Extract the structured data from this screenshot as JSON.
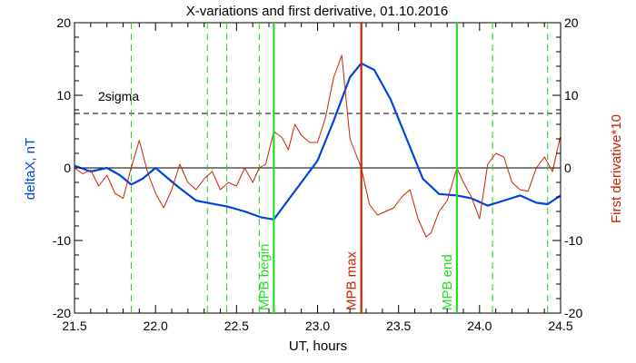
{
  "chart_data": {
    "type": "line",
    "title": "X-variations and first derivative, 01.10.2016",
    "xlabel": "UT, hours",
    "ylabel_left": "deltaX, nT",
    "ylabel_right": "First derivative*10",
    "xlim": [
      21.5,
      24.5
    ],
    "ylim_left": [
      -20,
      20
    ],
    "ylim_right": [
      -20,
      20
    ],
    "x_ticks": [
      "21.5",
      "22.0",
      "22.5",
      "23.0",
      "23.5",
      "24.0",
      "24.5"
    ],
    "y_ticks_left": [
      "-20",
      "-10",
      "0",
      "10",
      "20"
    ],
    "y_ticks_right": [
      "-20",
      "-10",
      "0",
      "10",
      "20"
    ],
    "threshold": {
      "label": "2sigma",
      "value": 7.5
    },
    "colors": {
      "deltaX": "#0044dd",
      "derivative": "#cc2200",
      "mpb_boundary": "#22dd22",
      "mpb_max": "#cc2200",
      "dashed_green": "#22cc22",
      "ylabel_left": "#0044dd",
      "ylabel_right": "#cc2200"
    },
    "vertical_markers": [
      {
        "label": "MPB begin",
        "x": 22.73,
        "kind": "boundary"
      },
      {
        "label": "MPB max",
        "x": 23.27,
        "kind": "max"
      },
      {
        "label": "MPB end",
        "x": 23.86,
        "kind": "boundary"
      }
    ],
    "dashed_verticals": [
      21.85,
      22.32,
      22.44,
      22.64,
      24.08,
      24.42
    ],
    "series": [
      {
        "key": "deltaX",
        "x": [
          21.5,
          21.6,
          21.7,
          21.78,
          21.85,
          21.92,
          22.0,
          22.08,
          22.15,
          22.25,
          22.32,
          22.44,
          22.55,
          22.65,
          22.73,
          22.8,
          22.9,
          23.0,
          23.1,
          23.2,
          23.27,
          23.35,
          23.45,
          23.55,
          23.65,
          23.75,
          23.86,
          23.95,
          24.05,
          24.15,
          24.25,
          24.35,
          24.42,
          24.5
        ],
        "y": [
          0.3,
          -0.5,
          0.0,
          -1.0,
          -2.3,
          -1.5,
          0.0,
          -1.5,
          -2.8,
          -4.5,
          -4.8,
          -5.3,
          -6.0,
          -6.8,
          -7.1,
          -5.0,
          -2.0,
          1.0,
          6.5,
          12.5,
          14.4,
          13.5,
          9.5,
          4.0,
          -1.5,
          -3.6,
          -3.8,
          -4.2,
          -5.2,
          -4.5,
          -3.8,
          -4.8,
          -5.0,
          -3.8
        ]
      },
      {
        "key": "derivative",
        "x": [
          21.5,
          21.55,
          21.6,
          21.65,
          21.7,
          21.75,
          21.8,
          21.85,
          21.9,
          21.95,
          22.0,
          22.05,
          22.1,
          22.15,
          22.2,
          22.25,
          22.3,
          22.35,
          22.4,
          22.45,
          22.5,
          22.55,
          22.6,
          22.64,
          22.68,
          22.73,
          22.78,
          22.82,
          22.86,
          22.9,
          22.95,
          23.0,
          23.05,
          23.1,
          23.15,
          23.2,
          23.27,
          23.32,
          23.37,
          23.42,
          23.47,
          23.52,
          23.57,
          23.62,
          23.67,
          23.7,
          23.75,
          23.8,
          23.86,
          23.9,
          23.95,
          24.0,
          24.05,
          24.1,
          24.15,
          24.2,
          24.25,
          24.3,
          24.35,
          24.4,
          24.45,
          24.5
        ],
        "y": [
          0.0,
          -0.8,
          -0.3,
          -2.5,
          -1.0,
          -3.5,
          -4.2,
          0.0,
          3.8,
          -0.5,
          -3.5,
          -5.5,
          -3.0,
          0.5,
          -2.0,
          -3.0,
          -1.5,
          -0.5,
          -3.0,
          -2.0,
          -2.5,
          0.0,
          -2.0,
          0.0,
          0.5,
          5.0,
          4.2,
          2.5,
          6.0,
          4.5,
          3.5,
          3.5,
          7.0,
          12.5,
          15.5,
          4.0,
          0.0,
          -5.0,
          -6.5,
          -6.0,
          -5.5,
          -4.0,
          -3.0,
          -7.0,
          -9.5,
          -9.0,
          -6.0,
          -4.5,
          0.0,
          -2.0,
          -4.0,
          -7.0,
          0.5,
          2.0,
          1.5,
          -2.0,
          -3.0,
          -3.2,
          0.0,
          1.5,
          -0.5,
          4.5
        ]
      }
    ]
  }
}
